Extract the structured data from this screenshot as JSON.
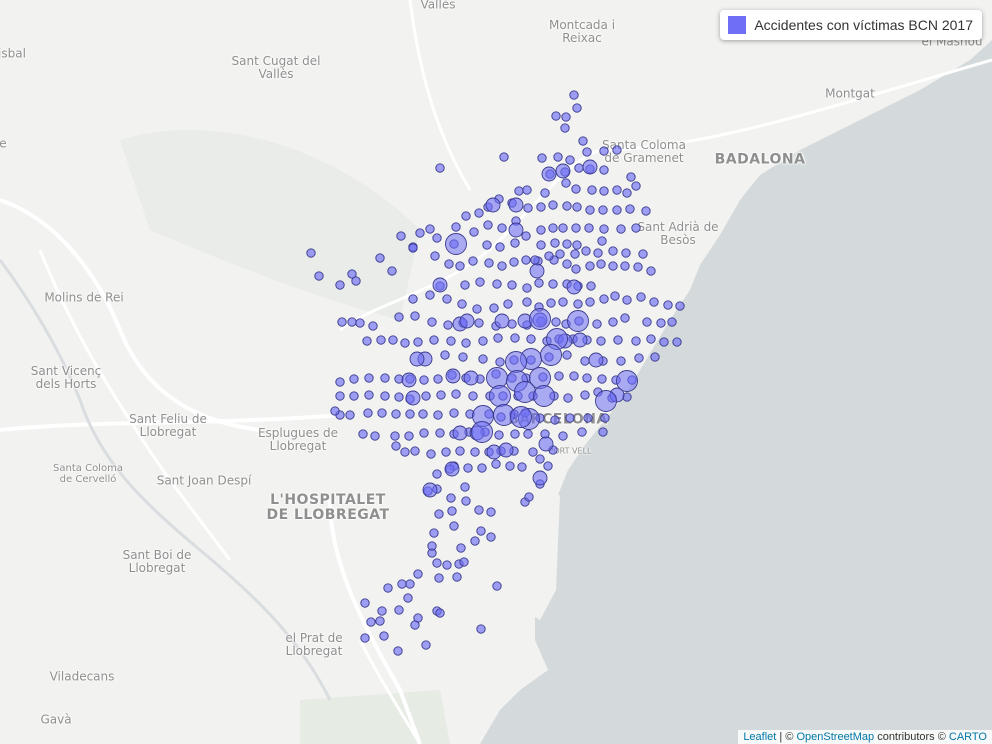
{
  "map": {
    "colors": {
      "land": "#f2f2f0",
      "sea": "#d4dadc",
      "roads": "#ffffff",
      "parks": "#e6ebe4",
      "point_fill": "#6f6ff5",
      "point_stroke": "#3a3a8c"
    },
    "place_labels": [
      {
        "id": "valles",
        "text": "Vallès"
      },
      {
        "id": "montcada",
        "text": "Montcada i\nReixac"
      },
      {
        "id": "masnou",
        "text": "el Masnou"
      },
      {
        "id": "isbal",
        "text": "isbal"
      },
      {
        "id": "santcugat",
        "text": "Sant Cugat del\nVallès"
      },
      {
        "id": "montgat",
        "text": "Montgat"
      },
      {
        "id": "santacoloma",
        "text": "Santa Coloma\nde Gramenet"
      },
      {
        "id": "badalona",
        "text": "BADALONA"
      },
      {
        "id": "santadria",
        "text": "Sant Adrià de\nBesòs"
      },
      {
        "id": "molins",
        "text": "Molins de Rei"
      },
      {
        "id": "santvicenc",
        "text": "Sant Vicenç\ndels Horts"
      },
      {
        "id": "santfeliu",
        "text": "Sant Feliu de\nLlobregat"
      },
      {
        "id": "esplugues",
        "text": "Esplugues de\nLlobregat"
      },
      {
        "id": "barcelona",
        "text": "BARCELONA"
      },
      {
        "id": "portvell",
        "text": "PORT VELL"
      },
      {
        "id": "cervello",
        "text": "Santa Coloma\nde Cervelló"
      },
      {
        "id": "santjoan",
        "text": "Sant Joan Despí"
      },
      {
        "id": "hospitalet",
        "text": "L'HOSPITALET\nDE LLOBREGAT"
      },
      {
        "id": "santboi",
        "text": "Sant Boi de\nLlobregat"
      },
      {
        "id": "prat",
        "text": "el Prat de\nLlobregat"
      },
      {
        "id": "viladecans",
        "text": "Viladecans"
      },
      {
        "id": "gava",
        "text": "Gavà"
      },
      {
        "id": "e",
        "text": "e"
      }
    ],
    "points": [
      [
        556,
        116
      ],
      [
        566,
        117
      ],
      [
        574,
        95
      ],
      [
        565,
        128
      ],
      [
        577,
        108
      ],
      [
        583,
        141
      ],
      [
        604,
        151
      ],
      [
        587,
        152
      ],
      [
        570,
        160
      ],
      [
        558,
        157
      ],
      [
        542,
        158
      ],
      [
        504,
        157
      ],
      [
        440,
        168
      ],
      [
        617,
        150
      ],
      [
        631,
        177
      ],
      [
        636,
        186
      ],
      [
        627,
        193
      ],
      [
        617,
        190
      ],
      [
        604,
        191
      ],
      [
        592,
        190
      ],
      [
        576,
        189
      ],
      [
        566,
        183
      ],
      [
        550,
        174
      ],
      [
        565,
        172
      ],
      [
        579,
        168
      ],
      [
        590,
        169
      ],
      [
        604,
        170
      ],
      [
        603,
        210
      ],
      [
        617,
        210
      ],
      [
        630,
        209
      ],
      [
        621,
        229
      ],
      [
        604,
        229
      ],
      [
        589,
        228
      ],
      [
        576,
        228
      ],
      [
        563,
        228
      ],
      [
        553,
        228
      ],
      [
        541,
        230
      ],
      [
        541,
        245
      ],
      [
        555,
        243
      ],
      [
        567,
        244
      ],
      [
        577,
        245
      ],
      [
        602,
        241
      ],
      [
        636,
        228
      ],
      [
        646,
        211
      ],
      [
        590,
        210
      ],
      [
        577,
        207
      ],
      [
        567,
        206
      ],
      [
        553,
        205
      ],
      [
        541,
        207
      ],
      [
        528,
        208
      ],
      [
        519,
        191
      ],
      [
        527,
        190
      ],
      [
        545,
        193
      ],
      [
        512,
        203
      ],
      [
        499,
        199
      ],
      [
        488,
        207
      ],
      [
        479,
        213
      ],
      [
        466,
        216
      ],
      [
        456,
        227
      ],
      [
        454,
        244
      ],
      [
        437,
        238
      ],
      [
        430,
        229
      ],
      [
        420,
        233
      ],
      [
        401,
        236
      ],
      [
        413,
        247
      ],
      [
        474,
        232
      ],
      [
        488,
        225
      ],
      [
        502,
        228
      ],
      [
        516,
        221
      ],
      [
        526,
        236
      ],
      [
        515,
        243
      ],
      [
        500,
        247
      ],
      [
        487,
        245
      ],
      [
        473,
        261
      ],
      [
        489,
        263
      ],
      [
        502,
        266
      ],
      [
        514,
        262
      ],
      [
        526,
        260
      ],
      [
        538,
        261
      ],
      [
        554,
        260
      ],
      [
        567,
        264
      ],
      [
        576,
        269
      ],
      [
        590,
        266
      ],
      [
        601,
        264
      ],
      [
        613,
        266
      ],
      [
        625,
        266
      ],
      [
        638,
        267
      ],
      [
        651,
        271
      ],
      [
        643,
        254
      ],
      [
        626,
        253
      ],
      [
        613,
        251
      ],
      [
        598,
        253
      ],
      [
        586,
        251
      ],
      [
        575,
        254
      ],
      [
        560,
        254
      ],
      [
        549,
        256
      ],
      [
        535,
        260
      ],
      [
        460,
        266
      ],
      [
        449,
        264
      ],
      [
        435,
        256
      ],
      [
        413,
        248
      ],
      [
        392,
        271
      ],
      [
        380,
        258
      ],
      [
        352,
        274
      ],
      [
        356,
        281
      ],
      [
        340,
        285
      ],
      [
        311,
        253
      ],
      [
        319,
        276
      ],
      [
        413,
        299
      ],
      [
        430,
        295
      ],
      [
        440,
        286
      ],
      [
        447,
        299
      ],
      [
        462,
        304
      ],
      [
        477,
        309
      ],
      [
        494,
        308
      ],
      [
        508,
        304
      ],
      [
        527,
        302
      ],
      [
        539,
        307
      ],
      [
        551,
        303
      ],
      [
        563,
        302
      ],
      [
        578,
        304
      ],
      [
        590,
        302
      ],
      [
        604,
        299
      ],
      [
        615,
        296
      ],
      [
        627,
        300
      ],
      [
        641,
        297
      ],
      [
        654,
        302
      ],
      [
        668,
        305
      ],
      [
        680,
        306
      ],
      [
        591,
        286
      ],
      [
        578,
        286
      ],
      [
        567,
        284
      ],
      [
        553,
        284
      ],
      [
        539,
        283
      ],
      [
        527,
        288
      ],
      [
        512,
        285
      ],
      [
        497,
        284
      ],
      [
        480,
        282
      ],
      [
        465,
        285
      ],
      [
        415,
        316
      ],
      [
        432,
        322
      ],
      [
        448,
        325
      ],
      [
        463,
        323
      ],
      [
        479,
        323
      ],
      [
        496,
        326
      ],
      [
        512,
        324
      ],
      [
        527,
        325
      ],
      [
        541,
        321
      ],
      [
        556,
        322
      ],
      [
        566,
        324
      ],
      [
        579,
        321
      ],
      [
        597,
        324
      ],
      [
        613,
        322
      ],
      [
        625,
        318
      ],
      [
        647,
        322
      ],
      [
        661,
        323
      ],
      [
        672,
        322
      ],
      [
        651,
        339
      ],
      [
        636,
        341
      ],
      [
        618,
        340
      ],
      [
        601,
        341
      ],
      [
        587,
        340
      ],
      [
        573,
        339
      ],
      [
        559,
        339
      ],
      [
        547,
        341
      ],
      [
        531,
        339
      ],
      [
        515,
        338
      ],
      [
        498,
        338
      ],
      [
        483,
        341
      ],
      [
        466,
        343
      ],
      [
        451,
        341
      ],
      [
        434,
        340
      ],
      [
        418,
        342
      ],
      [
        405,
        343
      ],
      [
        393,
        340
      ],
      [
        381,
        340
      ],
      [
        367,
        341
      ],
      [
        360,
        323
      ],
      [
        342,
        322
      ],
      [
        352,
        322
      ],
      [
        373,
        326
      ],
      [
        399,
        317
      ],
      [
        445,
        355
      ],
      [
        463,
        357
      ],
      [
        483,
        359
      ],
      [
        500,
        362
      ],
      [
        514,
        360
      ],
      [
        531,
        360
      ],
      [
        549,
        357
      ],
      [
        567,
        355
      ],
      [
        585,
        361
      ],
      [
        603,
        361
      ],
      [
        621,
        361
      ],
      [
        639,
        358
      ],
      [
        655,
        357
      ],
      [
        664,
        342
      ],
      [
        677,
        342
      ],
      [
        632,
        380
      ],
      [
        616,
        380
      ],
      [
        602,
        379
      ],
      [
        587,
        378
      ],
      [
        574,
        376
      ],
      [
        559,
        376
      ],
      [
        543,
        377
      ],
      [
        526,
        378
      ],
      [
        512,
        378
      ],
      [
        496,
        374
      ],
      [
        480,
        379
      ],
      [
        466,
        378
      ],
      [
        452,
        375
      ],
      [
        438,
        379
      ],
      [
        424,
        380
      ],
      [
        410,
        379
      ],
      [
        399,
        379
      ],
      [
        385,
        378
      ],
      [
        369,
        378
      ],
      [
        354,
        379
      ],
      [
        340,
        382
      ],
      [
        340,
        396
      ],
      [
        354,
        396
      ],
      [
        369,
        395
      ],
      [
        385,
        396
      ],
      [
        399,
        397
      ],
      [
        410,
        399
      ],
      [
        426,
        396
      ],
      [
        441,
        395
      ],
      [
        456,
        394
      ],
      [
        473,
        396
      ],
      [
        490,
        396
      ],
      [
        503,
        396
      ],
      [
        518,
        396
      ],
      [
        533,
        396
      ],
      [
        554,
        396
      ],
      [
        568,
        398
      ],
      [
        585,
        395
      ],
      [
        598,
        392
      ],
      [
        612,
        398
      ],
      [
        627,
        397
      ],
      [
        605,
        418
      ],
      [
        588,
        418
      ],
      [
        570,
        418
      ],
      [
        555,
        420
      ],
      [
        540,
        418
      ],
      [
        525,
        413
      ],
      [
        514,
        414
      ],
      [
        501,
        417
      ],
      [
        489,
        414
      ],
      [
        470,
        414
      ],
      [
        454,
        413
      ],
      [
        438,
        415
      ],
      [
        423,
        414
      ],
      [
        410,
        414
      ],
      [
        396,
        414
      ],
      [
        382,
        413
      ],
      [
        368,
        413
      ],
      [
        350,
        415
      ],
      [
        340,
        415
      ],
      [
        335,
        411
      ],
      [
        363,
        434
      ],
      [
        375,
        436
      ],
      [
        395,
        436
      ],
      [
        409,
        436
      ],
      [
        424,
        433
      ],
      [
        440,
        433
      ],
      [
        454,
        434
      ],
      [
        469,
        432
      ],
      [
        485,
        432
      ],
      [
        499,
        435
      ],
      [
        515,
        434
      ],
      [
        528,
        434
      ],
      [
        545,
        434
      ],
      [
        563,
        436
      ],
      [
        582,
        432
      ],
      [
        603,
        432
      ],
      [
        553,
        450
      ],
      [
        533,
        452
      ],
      [
        514,
        451
      ],
      [
        501,
        451
      ],
      [
        489,
        452
      ],
      [
        475,
        452
      ],
      [
        460,
        451
      ],
      [
        446,
        452
      ],
      [
        431,
        454
      ],
      [
        415,
        451
      ],
      [
        405,
        452
      ],
      [
        396,
        446
      ],
      [
        454,
        466
      ],
      [
        468,
        468
      ],
      [
        482,
        468
      ],
      [
        496,
        464
      ],
      [
        510,
        466
      ],
      [
        522,
        467
      ],
      [
        540,
        459
      ],
      [
        548,
        466
      ],
      [
        437,
        474
      ],
      [
        450,
        469
      ],
      [
        465,
        487
      ],
      [
        437,
        489
      ],
      [
        428,
        491
      ],
      [
        451,
        498
      ],
      [
        466,
        501
      ],
      [
        439,
        514
      ],
      [
        452,
        511
      ],
      [
        479,
        510
      ],
      [
        491,
        512
      ],
      [
        525,
        502
      ],
      [
        529,
        497
      ],
      [
        540,
        484
      ],
      [
        454,
        526
      ],
      [
        481,
        531
      ],
      [
        491,
        537
      ],
      [
        475,
        541
      ],
      [
        461,
        548
      ],
      [
        434,
        533
      ],
      [
        437,
        563
      ],
      [
        447,
        565
      ],
      [
        432,
        553
      ],
      [
        432,
        546
      ],
      [
        459,
        564
      ],
      [
        439,
        578
      ],
      [
        418,
        574
      ],
      [
        410,
        584
      ],
      [
        402,
        584
      ],
      [
        388,
        588
      ],
      [
        408,
        598
      ],
      [
        437,
        611
      ],
      [
        440,
        613
      ],
      [
        418,
        618
      ],
      [
        399,
        610
      ],
      [
        382,
        611
      ],
      [
        365,
        603
      ],
      [
        380,
        621
      ],
      [
        371,
        622
      ],
      [
        365,
        638
      ],
      [
        384,
        636
      ],
      [
        398,
        651
      ],
      [
        415,
        625
      ],
      [
        426,
        645
      ],
      [
        481,
        629
      ],
      [
        497,
        586
      ],
      [
        457,
        577
      ],
      [
        464,
        562
      ]
    ],
    "points_medium": [
      [
        549,
        174
      ],
      [
        563,
        171
      ],
      [
        590,
        167
      ],
      [
        516,
        205
      ],
      [
        493,
        205
      ],
      [
        537,
        271
      ],
      [
        516,
        230
      ],
      [
        574,
        287
      ],
      [
        460,
        324
      ],
      [
        425,
        359
      ],
      [
        440,
        285
      ],
      [
        467,
        321
      ],
      [
        502,
        321
      ],
      [
        525,
        321
      ],
      [
        540,
        320
      ],
      [
        565,
        341
      ],
      [
        580,
        340
      ],
      [
        596,
        360
      ],
      [
        617,
        395
      ],
      [
        453,
        376
      ],
      [
        471,
        378
      ],
      [
        413,
        398
      ],
      [
        494,
        452
      ],
      [
        506,
        450
      ],
      [
        477,
        433
      ],
      [
        460,
        433
      ],
      [
        452,
        469
      ],
      [
        430,
        490
      ],
      [
        540,
        478
      ],
      [
        546,
        444
      ],
      [
        409,
        380
      ],
      [
        417,
        359
      ]
    ],
    "points_large": [
      [
        456,
        244
      ],
      [
        578,
        321
      ],
      [
        540,
        319
      ],
      [
        557,
        339
      ],
      [
        531,
        359
      ],
      [
        551,
        355
      ],
      [
        516,
        362
      ],
      [
        497,
        378
      ],
      [
        517,
        381
      ],
      [
        540,
        378
      ],
      [
        500,
        396
      ],
      [
        525,
        392
      ],
      [
        544,
        396
      ],
      [
        483,
        416
      ],
      [
        504,
        415
      ],
      [
        529,
        419
      ],
      [
        482,
        432
      ],
      [
        521,
        417
      ],
      [
        627,
        381
      ],
      [
        606,
        401
      ]
    ],
    "legend": {
      "label": "Accidentes con víctimas BCN 2017",
      "swatch_color": "#6f6ff5"
    },
    "attribution": {
      "leaflet": "Leaflet",
      "sep1": " | © ",
      "osm": "OpenStreetMap",
      "mid": " contributors © ",
      "carto": "CARTO"
    }
  }
}
